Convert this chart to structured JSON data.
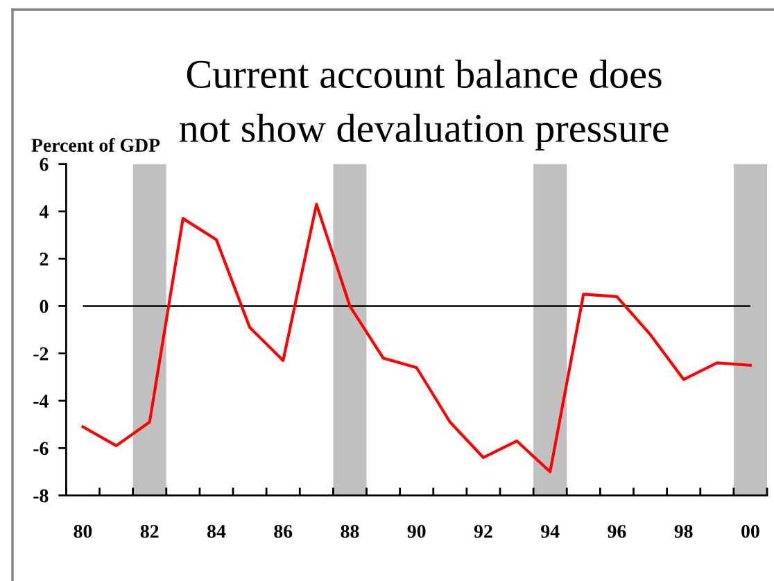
{
  "chart_data": {
    "type": "line",
    "title": "Current account balance does\nnot show devaluation pressure",
    "ylabel": "Percent of GDP",
    "categories": [
      "80",
      null,
      "82",
      null,
      "84",
      null,
      "86",
      null,
      "88",
      null,
      "90",
      null,
      "92",
      null,
      "94",
      null,
      "96",
      null,
      "98",
      null,
      "00"
    ],
    "series": [
      {
        "color": "#ff0000",
        "values": [
          -5.1,
          -5.9,
          -4.9,
          3.7,
          2.8,
          -0.9,
          -2.3,
          4.3,
          0.0,
          -2.2,
          -2.6,
          -4.9,
          -6.4,
          -5.7,
          -7.0,
          0.5,
          0.4,
          -1.2,
          -3.1,
          -2.4,
          -2.5
        ]
      }
    ],
    "ylim": [
      -8,
      6
    ],
    "yticks": [
      -8,
      -6,
      -4,
      -2,
      0,
      2,
      4,
      6
    ],
    "ref_lines": [
      {
        "axis": "y",
        "value": 0,
        "color": "#000000"
      }
    ],
    "bands": [
      {
        "axis": "x",
        "from": "82",
        "to": "82",
        "color": "#c0c0c0"
      },
      {
        "axis": "x",
        "from": "88",
        "to": "88",
        "color": "#c0c0c0"
      },
      {
        "axis": "x",
        "from": "94",
        "to": "94",
        "color": "#c0c0c0"
      },
      {
        "axis": "x",
        "from": "00",
        "to": "00",
        "color": "#c0c0c0"
      }
    ],
    "marker": "none",
    "line_style": "solid"
  }
}
